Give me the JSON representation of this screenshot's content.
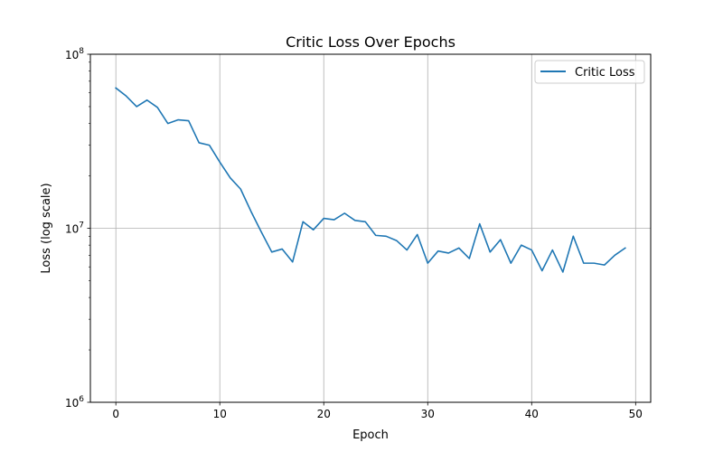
{
  "chart_data": {
    "type": "line",
    "title": "Critic Loss Over Epochs",
    "xlabel": "Epoch",
    "ylabel": "Loss (log scale)",
    "xlim": [
      -2.45,
      51.45
    ],
    "ylim": [
      1000000,
      100000000
    ],
    "yscale": "log",
    "grid": true,
    "legend_position": "top-right",
    "colors": {
      "line": "#1f77b4",
      "grid": "#b0b0b0",
      "axis": "#000000"
    },
    "x_ticks": [
      {
        "value": 0,
        "label": "0"
      },
      {
        "value": 10,
        "label": "10"
      },
      {
        "value": 20,
        "label": "20"
      },
      {
        "value": 30,
        "label": "30"
      },
      {
        "value": 40,
        "label": "40"
      },
      {
        "value": 50,
        "label": "50"
      }
    ],
    "y_ticks": [
      {
        "value": 1000000,
        "base": "10",
        "exp": "6"
      },
      {
        "value": 10000000,
        "base": "10",
        "exp": "7"
      },
      {
        "value": 100000000,
        "base": "10",
        "exp": "8"
      }
    ],
    "series": [
      {
        "name": "Critic Loss",
        "x": [
          0,
          1,
          2,
          3,
          4,
          5,
          6,
          7,
          8,
          9,
          10,
          11,
          12,
          13,
          14,
          15,
          16,
          17,
          18,
          19,
          20,
          21,
          22,
          23,
          24,
          25,
          26,
          27,
          28,
          29,
          30,
          31,
          32,
          33,
          34,
          35,
          36,
          37,
          38,
          39,
          40,
          41,
          42,
          43,
          44,
          45,
          46,
          47,
          48,
          49
        ],
        "values": [
          64000000,
          57500000,
          50000000,
          54500000,
          49500000,
          40000000,
          42000000,
          41500000,
          31000000,
          30000000,
          24000000,
          19500000,
          16800000,
          12500000,
          9500000,
          7300000,
          7600000,
          6400000,
          10900000,
          9800000,
          11400000,
          11200000,
          12200000,
          11100000,
          10900000,
          9100000,
          9000000,
          8500000,
          7500000,
          9200000,
          6300000,
          7400000,
          7200000,
          7700000,
          6700000,
          10600000,
          7300000,
          8600000,
          6300000,
          8000000,
          7500000,
          5700000,
          7500000,
          5600000,
          9000000,
          6300000,
          6300000,
          6150000,
          7000000,
          7700000
        ]
      }
    ]
  }
}
